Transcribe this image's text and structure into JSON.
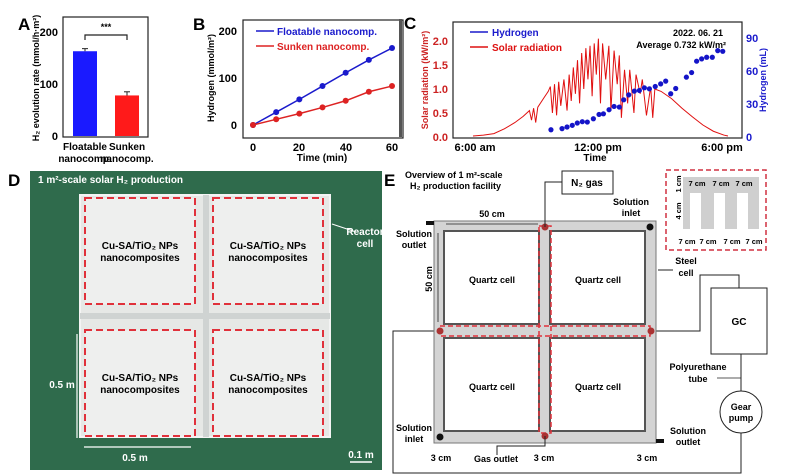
{
  "panel_labels": {
    "a": "A",
    "b": "B",
    "c": "C",
    "d": "D",
    "e": "E"
  },
  "chart_data": [
    {
      "type": "bar",
      "panel": "A",
      "categories": [
        [
          "Floatable",
          "nanocomp."
        ],
        [
          "Sunken",
          "nanocomp."
        ]
      ],
      "values": [
        163,
        78
      ],
      "errors": [
        5,
        7
      ],
      "colors": [
        "#1a1aff",
        "#ff1a1a"
      ],
      "ylabel": "H₂ evolution rate (mmol/h·m²)",
      "ylim": [
        0,
        225
      ],
      "yticks": [
        "0",
        "100",
        "200"
      ],
      "significance": "***"
    },
    {
      "type": "line",
      "panel": "B",
      "x": [
        0,
        10,
        20,
        30,
        40,
        50,
        60
      ],
      "series": [
        {
          "name": "Floatable nanocomp.",
          "color": "#1a1acc",
          "values": [
            0,
            27,
            54,
            82,
            110,
            137,
            162
          ]
        },
        {
          "name": "Sunken nanocomp.",
          "color": "#dd2222",
          "values": [
            0,
            12,
            24,
            37,
            51,
            70,
            82
          ]
        }
      ],
      "xlabel": "Time (min)",
      "ylabel": "Hydrogen (mmol/m²)",
      "xticks": [
        "0",
        "20",
        "40",
        "60"
      ],
      "yticks": [
        "0",
        "100",
        "200"
      ],
      "xlim": [
        -5,
        63
      ],
      "ylim": [
        -20,
        225
      ]
    },
    {
      "type": "line",
      "panel": "C",
      "date": "2022. 06. 21",
      "average": "Average 0.732 kW/m²",
      "xlabel": "Time",
      "ylabel_left": "Solar radiation (kW/m²)",
      "ylabel_right": "Hydrogen (mL)",
      "xticks": [
        "6:00 am",
        "12:00 pm",
        "6:00 pm"
      ],
      "yticks_left": [
        "0.0",
        "0.5",
        "1.0",
        "1.5",
        "2.0"
      ],
      "yticks_right": [
        "0",
        "30",
        "60",
        "90"
      ],
      "xlim_hours": [
        4.4,
        19.5
      ],
      "ylim_left": [
        0,
        2.35
      ],
      "ylim_right": [
        0,
        106
      ],
      "legend": [
        {
          "name": "Hydrogen",
          "color": "#1a1acc"
        },
        {
          "name": "Solar radiation",
          "color": "#dd1111"
        }
      ],
      "solar": [
        [
          6,
          0.02
        ],
        [
          6.5,
          0.04
        ],
        [
          7,
          0.07
        ],
        [
          7.5,
          0.17
        ],
        [
          8,
          0.3
        ],
        [
          8.4,
          0.43
        ],
        [
          8.7,
          0.55
        ],
        [
          8.8,
          0.35
        ],
        [
          8.9,
          0.6
        ],
        [
          9,
          0.3
        ],
        [
          9.1,
          0.62
        ],
        [
          9.4,
          0.82
        ],
        [
          9.6,
          0.95
        ],
        [
          9.7,
          1.05
        ],
        [
          9.8,
          0.5
        ],
        [
          9.9,
          1.1
        ],
        [
          10,
          0.45
        ],
        [
          10.1,
          1.15
        ],
        [
          10.2,
          0.65
        ],
        [
          10.35,
          1.2
        ],
        [
          10.5,
          0.55
        ],
        [
          10.6,
          1.3
        ],
        [
          10.7,
          0.75
        ],
        [
          10.8,
          1.45
        ],
        [
          10.9,
          0.9
        ],
        [
          11,
          1.6
        ],
        [
          11.1,
          0.7
        ],
        [
          11.2,
          1.75
        ],
        [
          11.3,
          1.0
        ],
        [
          11.4,
          1.85
        ],
        [
          11.5,
          1.2
        ],
        [
          11.6,
          1.9
        ],
        [
          11.7,
          0.85
        ],
        [
          11.8,
          1.95
        ],
        [
          11.9,
          1.3
        ],
        [
          12,
          2.05
        ],
        [
          12.1,
          0.7
        ],
        [
          12.2,
          1.95
        ],
        [
          12.35,
          1.2
        ],
        [
          12.5,
          1.9
        ],
        [
          12.6,
          0.55
        ],
        [
          12.75,
          1.8
        ],
        [
          12.9,
          1.1
        ],
        [
          13,
          1.7
        ],
        [
          13.1,
          0.4
        ],
        [
          13.25,
          1.4
        ],
        [
          13.4,
          0.7
        ],
        [
          13.5,
          1.4
        ],
        [
          13.7,
          0.5
        ],
        [
          13.8,
          1.3
        ],
        [
          14,
          0.9
        ],
        [
          14.1,
          1.2
        ],
        [
          14.3,
          0.45
        ],
        [
          14.5,
          1.05
        ],
        [
          14.6,
          0.4
        ],
        [
          14.7,
          1.0
        ],
        [
          15,
          0.95
        ],
        [
          15.5,
          0.8
        ],
        [
          16,
          0.6
        ],
        [
          16.5,
          0.42
        ],
        [
          17,
          0.25
        ],
        [
          17.5,
          0.12
        ],
        [
          18,
          0.04
        ],
        [
          18.2,
          0.02
        ]
      ],
      "hydrogen": [
        [
          9.73,
          6.6
        ],
        [
          10.26,
          7.6
        ],
        [
          10.5,
          9.1
        ],
        [
          10.75,
          10.6
        ],
        [
          10.99,
          12.7
        ],
        [
          11.23,
          13.9
        ],
        [
          11.47,
          13.6
        ],
        [
          11.76,
          16.6
        ],
        [
          12.03,
          20.5
        ],
        [
          12.24,
          21.1
        ],
        [
          12.51,
          24.8
        ],
        [
          12.75,
          27.8
        ],
        [
          13.0,
          27.2
        ],
        [
          13.21,
          33.8
        ],
        [
          13.45,
          38.3
        ],
        [
          13.72,
          41.7
        ],
        [
          13.96,
          42.3
        ],
        [
          14.2,
          44.7
        ],
        [
          14.44,
          43.8
        ],
        [
          14.72,
          45.9
        ],
        [
          14.98,
          48.3
        ],
        [
          15.22,
          50.8
        ],
        [
          15.46,
          39.3
        ],
        [
          15.7,
          44.1
        ],
        [
          16.21,
          54.4
        ],
        [
          16.46,
          58.6
        ],
        [
          16.7,
          68.9
        ],
        [
          16.94,
          71.0
        ],
        [
          17.18,
          72.5
        ],
        [
          17.45,
          72.5
        ],
        [
          17.71,
          78.5
        ],
        [
          17.95,
          77.9
        ]
      ]
    }
  ],
  "panel_d": {
    "title": "1 m²-scale solar H₂ production",
    "reactor_label": [
      "Reactor",
      "cell"
    ],
    "cell_label": [
      "Cu-SA/TiO₂ NPs",
      "nanocomposites"
    ],
    "dim_vertical": "0.5 m",
    "dim_horizontal": "0.5 m",
    "scale_bar": "0.1 m"
  },
  "panel_e": {
    "title": [
      "Overview of 1 m²-scale",
      "H₂ production facility"
    ],
    "n2": "N₂ gas",
    "width_dim": "50 cm",
    "height_dim": "50 cm",
    "solution_outlet": [
      "Solution",
      "outlet"
    ],
    "solution_inlet": [
      "Solution",
      "inlet"
    ],
    "steel_cell": [
      "Steel",
      "cell"
    ],
    "quartz": "Quartz cell",
    "gc": "GC",
    "tube": [
      "Polyurethane",
      "tube"
    ],
    "pump": [
      "Gear",
      "pump"
    ],
    "gas_outlet": "Gas outlet",
    "gap": "3 cm",
    "inset_w": "7 cm",
    "inset_1": "1 cm",
    "inset_4": "4 cm"
  }
}
